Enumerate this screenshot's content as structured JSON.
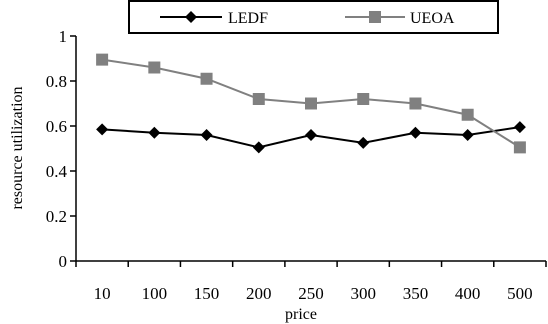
{
  "chart_data": {
    "type": "line",
    "title": "",
    "xlabel": "price",
    "ylabel": "resource utilization",
    "categories": [
      "10",
      "100",
      "150",
      "200",
      "250",
      "300",
      "350",
      "400",
      "500"
    ],
    "ylim": [
      0,
      1
    ],
    "yticks": [
      "0",
      "0.2",
      "0.4",
      "0.6",
      "0.8",
      "1"
    ],
    "grid": false,
    "legend_position": "top",
    "series": [
      {
        "name": "LEDF",
        "marker": "diamond",
        "color": "#000000",
        "values": [
          0.585,
          0.57,
          0.56,
          0.505,
          0.56,
          0.525,
          0.57,
          0.56,
          0.595
        ]
      },
      {
        "name": "UEOA",
        "marker": "square",
        "color": "#808080",
        "values": [
          0.895,
          0.86,
          0.81,
          0.72,
          0.7,
          0.72,
          0.7,
          0.65,
          0.505
        ]
      }
    ]
  }
}
